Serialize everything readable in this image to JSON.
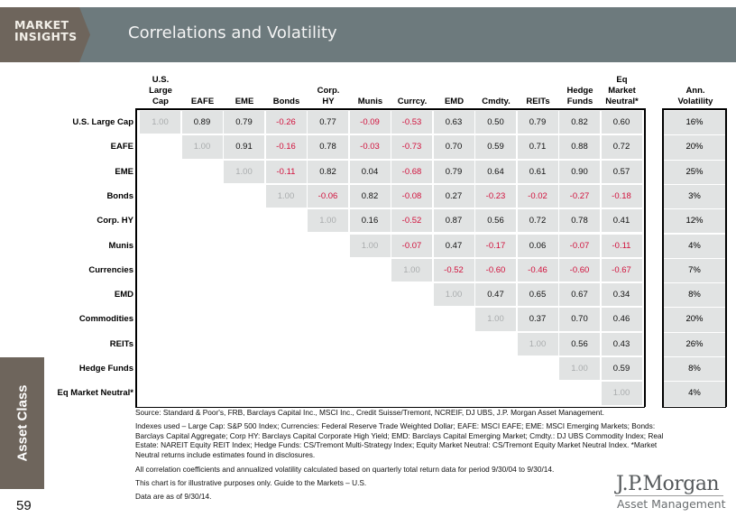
{
  "header": {
    "badge_line1": "MARKET",
    "badge_line2": "INSIGHTS",
    "title": "Correlations and Volatility"
  },
  "sidebar": {
    "section_label": "Asset Class",
    "page_number": "59"
  },
  "colors": {
    "header_bg": "#6d7a7d",
    "badge_bg": "#6e655c",
    "cell_bg": "#e1e3e3",
    "negative": "#d1113c",
    "diagonal": "#a9acad"
  },
  "chart_data": {
    "type": "table",
    "title": "Correlations and Volatility",
    "column_headers": [
      [
        "U.S.",
        "Large",
        "Cap"
      ],
      [
        "EAFE"
      ],
      [
        "EME"
      ],
      [
        "Bonds"
      ],
      [
        "Corp.",
        "HY"
      ],
      [
        "Munis"
      ],
      [
        "Currcy."
      ],
      [
        "EMD"
      ],
      [
        "Cmdty."
      ],
      [
        "REITs"
      ],
      [
        "Hedge",
        "Funds"
      ],
      [
        "Eq",
        "Market",
        "Neutral*"
      ]
    ],
    "volatility_header": [
      "Ann.",
      "Volatility"
    ],
    "row_labels": [
      "U.S. Large Cap",
      "EAFE",
      "EME",
      "Bonds",
      "Corp. HY",
      "Munis",
      "Currencies",
      "EMD",
      "Commodities",
      "REITs",
      "Hedge Funds",
      "Eq Market Neutral*"
    ],
    "correlations": [
      [
        "1.00",
        "0.89",
        "0.79",
        "-0.26",
        "0.77",
        "-0.09",
        "-0.53",
        "0.63",
        "0.50",
        "0.79",
        "0.82",
        "0.60"
      ],
      [
        "1.00",
        "0.91",
        "-0.16",
        "0.78",
        "-0.03",
        "-0.73",
        "0.70",
        "0.59",
        "0.71",
        "0.88",
        "0.72"
      ],
      [
        "1.00",
        "-0.11",
        "0.82",
        "0.04",
        "-0.68",
        "0.79",
        "0.64",
        "0.61",
        "0.90",
        "0.57"
      ],
      [
        "1.00",
        "-0.06",
        "0.82",
        "-0.08",
        "0.27",
        "-0.23",
        "-0.02",
        "-0.27",
        "-0.18"
      ],
      [
        "1.00",
        "0.16",
        "-0.52",
        "0.87",
        "0.56",
        "0.72",
        "0.78",
        "0.41"
      ],
      [
        "1.00",
        "-0.07",
        "0.47",
        "-0.17",
        "0.06",
        "-0.07",
        "-0.11"
      ],
      [
        "1.00",
        "-0.52",
        "-0.60",
        "-0.46",
        "-0.60",
        "-0.67"
      ],
      [
        "1.00",
        "0.47",
        "0.65",
        "0.67",
        "0.34"
      ],
      [
        "1.00",
        "0.37",
        "0.70",
        "0.46"
      ],
      [
        "1.00",
        "0.56",
        "0.43"
      ],
      [
        "1.00",
        "0.59"
      ],
      [
        "1.00"
      ]
    ],
    "annualized_volatility": [
      "16%",
      "20%",
      "25%",
      "3%",
      "12%",
      "4%",
      "7%",
      "8%",
      "20%",
      "26%",
      "8%",
      "4%"
    ]
  },
  "footnotes": {
    "source": "Source: Standard & Poor's, FRB, Barclays Capital Inc., MSCI Inc., Credit Suisse/Tremont, NCREIF, DJ UBS, J.P. Morgan Asset Management.",
    "indexes": "Indexes used – Large Cap: S&P 500 Index; Currencies: Federal Reserve Trade Weighted Dollar; EAFE: MSCI EAFE; EME: MSCI Emerging Markets; Bonds: Barclays Capital Aggregate; Corp HY: Barclays Capital Corporate High Yield; EMD: Barclays Capital Emerging Market; Cmdty.: DJ UBS Commodity Index; Real Estate: NAREIT Equity REIT Index; Hedge Funds: CS/Tremont Multi-Strategy Index; Equity Market Neutral: CS/Tremont Equity Market Neutral Index. *Market Neutral returns include estimates found in disclosures.",
    "calc": "All correlation coefficients and annualized volatility calculated based on quarterly total return data for period 9/30/04 to 9/30/14.",
    "illustrative": "This chart is for illustrative purposes only. Guide to the Markets – U.S.",
    "asof": "Data are as of 9/30/14."
  },
  "logo": {
    "brand": "J.P.Morgan",
    "sub": "Asset Management"
  }
}
